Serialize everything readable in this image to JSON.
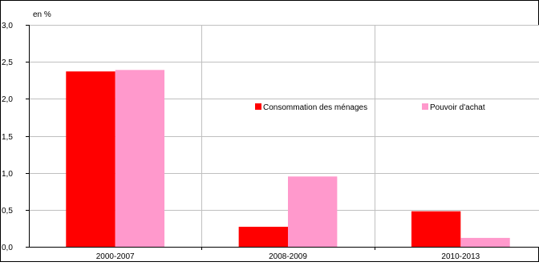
{
  "chart_data": {
    "type": "bar",
    "unit_label": "en %",
    "categories": [
      "2000-2007",
      "2008-2009",
      "2010-2013"
    ],
    "series": [
      {
        "name": "Consommation des ménages",
        "color": "#ff0000",
        "values": [
          2.37,
          0.27,
          0.48
        ]
      },
      {
        "name": "Pouvoir d'achat",
        "color": "#ff99cc",
        "values": [
          2.39,
          0.95,
          0.12
        ]
      }
    ],
    "y_ticks": [
      "0,0",
      "0,5",
      "1,0",
      "1,5",
      "2,0",
      "2,5",
      "3,0"
    ],
    "ylim": [
      0,
      3
    ],
    "grid": true,
    "legend_position": "center-right"
  }
}
